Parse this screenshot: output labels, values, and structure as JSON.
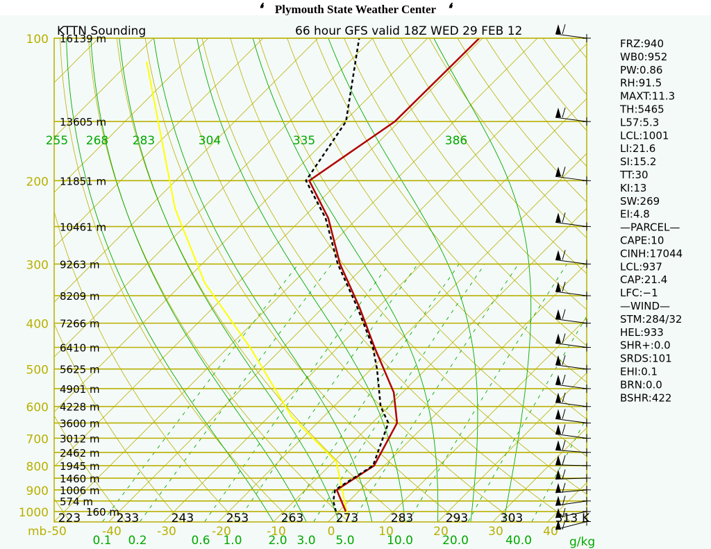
{
  "header": {
    "title": "Plymouth State Weather Center",
    "flag_left": "❛",
    "flag_right": "❛"
  },
  "chart_data": {
    "type": "line",
    "subtype": "skew-t log-p sounding",
    "title_left": "KTTN Sounding",
    "title_right": "66 hour GFS valid 18Z WED 29 FEB 12",
    "pressure_unit_label": "mb",
    "pressure_ticks": [
      100,
      200,
      300,
      400,
      500,
      600,
      700,
      800,
      900,
      1000
    ],
    "pressure_lines": [
      100,
      150,
      200,
      250,
      300,
      350,
      400,
      450,
      500,
      550,
      600,
      650,
      700,
      750,
      800,
      850,
      900,
      950,
      1000
    ],
    "heights": [
      {
        "p": 100,
        "label": "16139 m"
      },
      {
        "p": 150,
        "label": "13605 m"
      },
      {
        "p": 200,
        "label": "11851 m"
      },
      {
        "p": 250,
        "label": "10461 m"
      },
      {
        "p": 300,
        "label": "9263 m"
      },
      {
        "p": 350,
        "label": "8209 m"
      },
      {
        "p": 400,
        "label": "7266 m"
      },
      {
        "p": 450,
        "label": "6410 m"
      },
      {
        "p": 500,
        "label": "5625 m"
      },
      {
        "p": 550,
        "label": "4901 m"
      },
      {
        "p": 600,
        "label": "4228 m"
      },
      {
        "p": 650,
        "label": "3600 m"
      },
      {
        "p": 700,
        "label": "3012 m"
      },
      {
        "p": 750,
        "label": "2462 m"
      },
      {
        "p": 800,
        "label": "1945 m"
      },
      {
        "p": 850,
        "label": "1460 m"
      },
      {
        "p": 900,
        "label": "1006 m"
      },
      {
        "p": 950,
        "label": "574 m"
      },
      {
        "p": 1000,
        "label": "160 m"
      }
    ],
    "temperature_ticks": [
      "-50",
      "-40",
      "-30",
      "-20",
      "-10",
      "0",
      "10",
      "20",
      "30",
      "40"
    ],
    "theta_labels": [
      "223",
      "233",
      "243",
      "253",
      "263",
      "273",
      "283",
      "293",
      "303",
      "313"
    ],
    "theta_unit": "K",
    "theta_e_labels": [
      "255",
      "268",
      "283",
      "304",
      "335",
      "386"
    ],
    "mixing_ratio_labels": [
      "0.1",
      "0.2",
      "0.6",
      "1.0",
      "2.0",
      "3.0",
      "5.0",
      "10.0",
      "20.0",
      "40.0"
    ],
    "mixing_ratio_unit": "g/kg",
    "xlim_C_at_1050mb": [
      -50,
      47
    ],
    "ylim_mb": [
      1050,
      100
    ],
    "series": [
      {
        "name": "temperature",
        "color": "#b00000",
        "points": [
          [
            1000,
            1.4
          ],
          [
            900,
            -4.2
          ],
          [
            800,
            -1.8
          ],
          [
            650,
            -5.4
          ],
          [
            560,
            -11.6
          ],
          [
            450,
            -23.3
          ],
          [
            370,
            -33.4
          ],
          [
            300,
            -44.8
          ],
          [
            240,
            -55.3
          ],
          [
            200,
            -65.6
          ],
          [
            150,
            -60.8
          ],
          [
            100,
            -60.6
          ]
        ]
      },
      {
        "name": "dewpoint",
        "color": "#000000",
        "points": [
          [
            1000,
            -0.4
          ],
          [
            950,
            -2.8
          ],
          [
            900,
            -4.5
          ],
          [
            800,
            -2.0
          ],
          [
            650,
            -7.0
          ],
          [
            600,
            -11.4
          ],
          [
            500,
            -18.9
          ],
          [
            450,
            -23.6
          ],
          [
            370,
            -33.8
          ],
          [
            300,
            -45.2
          ],
          [
            240,
            -55.8
          ],
          [
            200,
            -66.2
          ],
          [
            150,
            -69.7
          ],
          [
            100,
            -82.5
          ]
        ]
      },
      {
        "name": "parcel",
        "color": "#ffff00",
        "points": [
          [
            1030,
            2.9
          ],
          [
            785,
            -9.4
          ],
          [
            630,
            -25.8
          ],
          [
            450,
            -46
          ],
          [
            329,
            -66
          ],
          [
            229,
            -85
          ],
          [
            112,
            -117
          ]
        ]
      }
    ]
  },
  "indices": [
    "FRZ:940",
    "WB0:952",
    "PW:0.86",
    "RH:91.5",
    "MAXT:11.3",
    "TH:5465",
    "L57:5.3",
    "LCL:1001",
    "LI:21.6",
    "SI:15.2",
    "TT:30",
    "KI:13",
    "SW:269",
    "EI:4.8",
    "—PARCEL—",
    "CAPE:10",
    "CINH:17044",
    "LCL:937",
    "CAP:21.4",
    "LFC:−1",
    "—WIND—",
    "STM:284/32",
    "HEL:933",
    "SHR+:0.0",
    "SRDS:101",
    "EHI:0.1",
    "BRN:0.0",
    "BSHR:422"
  ],
  "colors": {
    "grid": "#b8b000",
    "moist": "#00a800",
    "temp": "#b00000",
    "parcel": "#ffff00",
    "bg": "#f4faf7"
  }
}
